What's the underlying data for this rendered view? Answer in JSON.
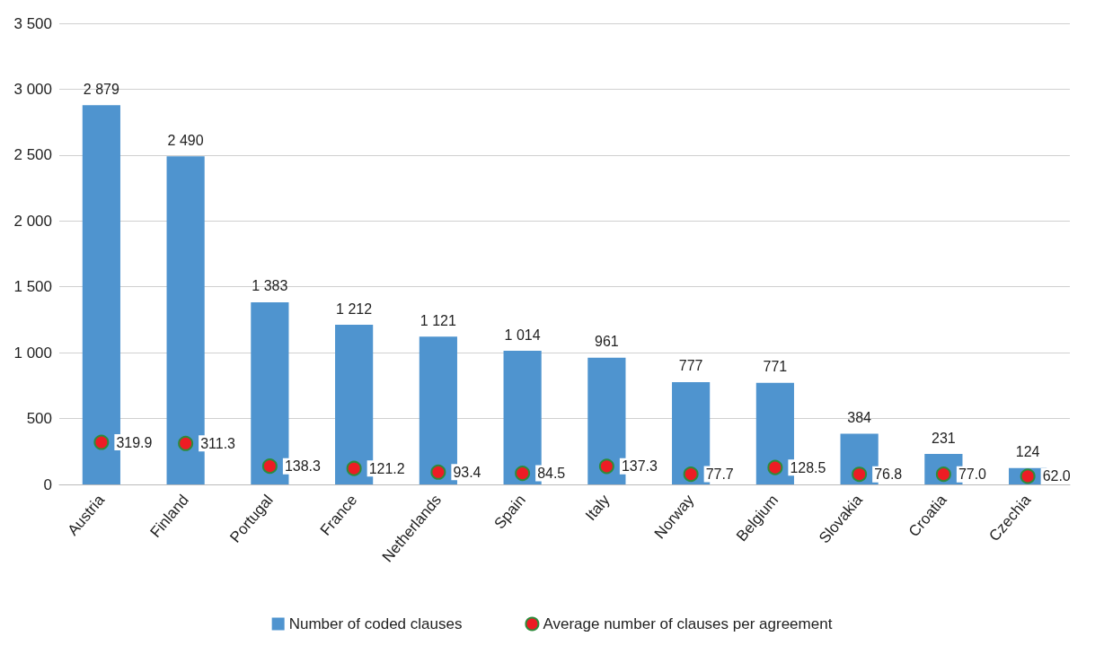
{
  "chart_data": {
    "type": "bar",
    "categories": [
      "Austria",
      "Finland",
      "Portugal",
      "France",
      "Netherlands",
      "Spain",
      "Italy",
      "Norway",
      "Belgium",
      "Slovakia",
      "Croatia",
      "Czechia"
    ],
    "series": [
      {
        "name": "Number of coded clauses",
        "color": "#4f94cf",
        "values": [
          2879,
          2490,
          1383,
          1212,
          1121,
          1014,
          961,
          777,
          771,
          384,
          231,
          124
        ],
        "value_labels": [
          "2 879",
          "2 490",
          "1 383",
          "1 212",
          "1 121",
          "1 014",
          "961",
          "777",
          "771",
          "384",
          "231",
          "124"
        ]
      },
      {
        "name": "Average number of clauses per agreement",
        "type": "scatter",
        "color": "#ed1c24",
        "marker": "circle",
        "values": [
          319.9,
          311.3,
          138.3,
          121.2,
          93.4,
          84.5,
          137.3,
          77.7,
          128.5,
          76.8,
          77.0,
          62.0
        ],
        "value_labels": [
          "319.9",
          "311.3",
          "138.3",
          "121.2",
          "93.4",
          "84.5",
          "137.3",
          "77.7",
          "128.5",
          "76.8",
          "77.0",
          "62.0"
        ]
      }
    ],
    "ylim": [
      0,
      3500
    ],
    "yticks": [
      0,
      500,
      {
        "value": 1000,
        "label": "1 000"
      },
      {
        "value": 1500,
        "label": "1 500"
      },
      {
        "value": 2000,
        "label": "2 000"
      },
      {
        "value": 2500,
        "label": "2 500"
      },
      {
        "value": 3000,
        "label": "3 000"
      },
      {
        "value": 3500,
        "label": "3 500"
      }
    ],
    "grid": "y",
    "legend": "bottom"
  }
}
